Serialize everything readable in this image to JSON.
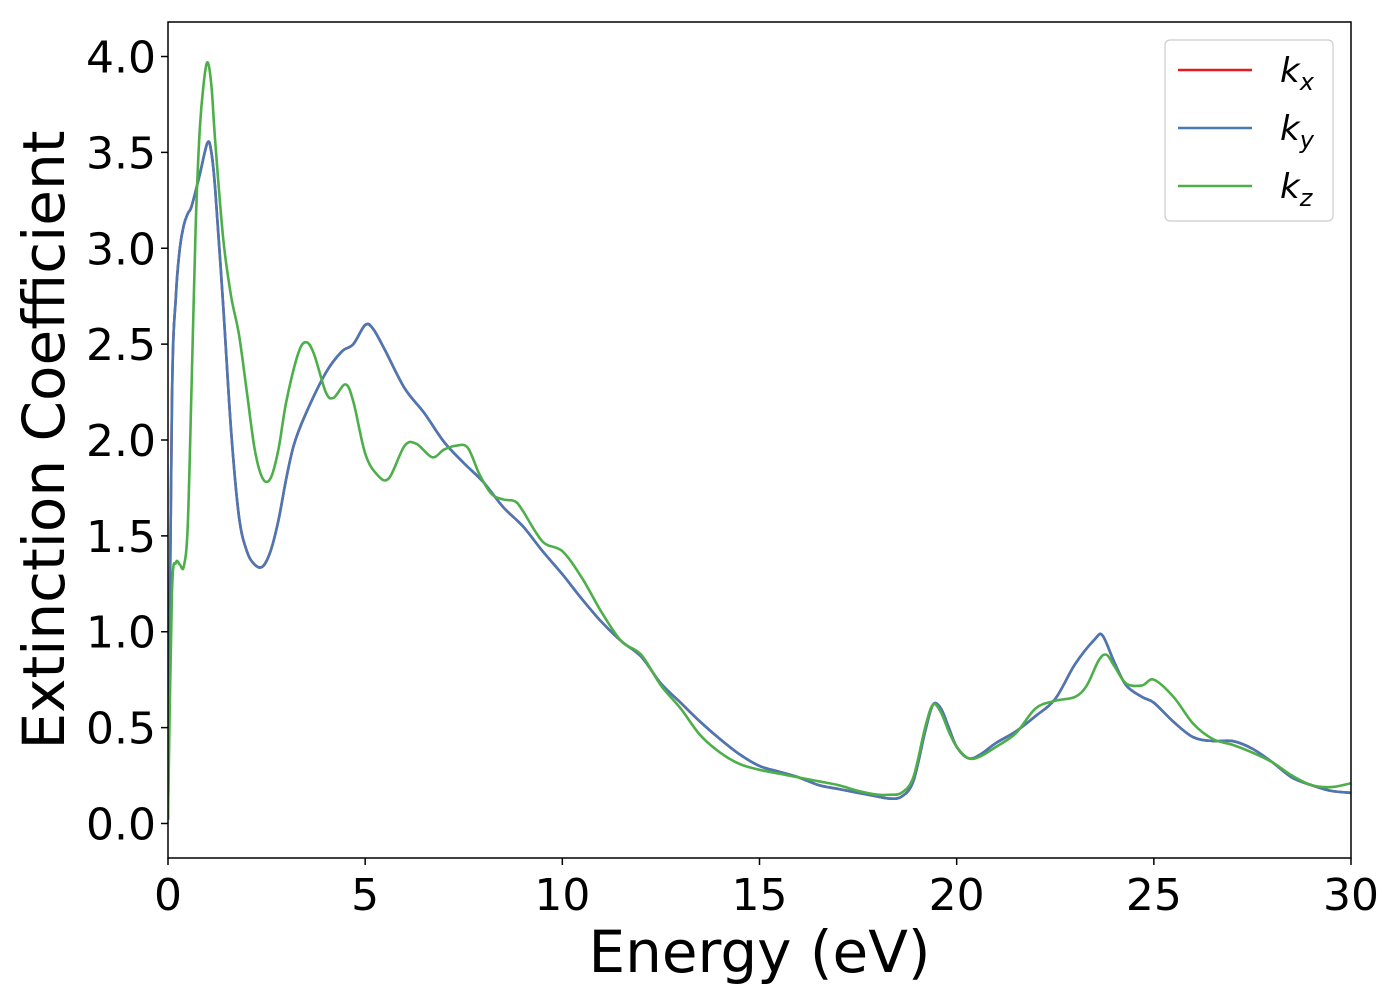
{
  "chart_data": {
    "type": "line",
    "xlabel": "Energy (eV)",
    "ylabel": "Extinction Coefficient",
    "xlim": [
      0,
      30
    ],
    "ylim": [
      -0.18,
      4.18
    ],
    "xticks": [
      "0",
      "5",
      "10",
      "15",
      "20",
      "25",
      "30"
    ],
    "yticks": [
      "0.0",
      "0.5",
      "1.0",
      "1.5",
      "2.0",
      "2.5",
      "3.0",
      "3.5",
      "4.0"
    ],
    "grid": false,
    "legend_position": "top-right",
    "series": [
      {
        "name": "k_x",
        "label_base": "k",
        "label_sub": "x",
        "color": "#e41a1c",
        "x": [
          0,
          0.1,
          0.2,
          0.3,
          0.4,
          0.5,
          0.6,
          0.8,
          1.0,
          1.1,
          1.2,
          1.4,
          1.6,
          1.8,
          2.0,
          2.2,
          2.4,
          2.6,
          2.8,
          3.0,
          3.2,
          3.5,
          4.0,
          4.4,
          4.7,
          5.0,
          5.2,
          5.5,
          6.0,
          6.5,
          7.0,
          7.5,
          8.0,
          8.5,
          9.0,
          9.5,
          10.0,
          10.5,
          11.0,
          11.5,
          12.0,
          12.5,
          13.0,
          13.5,
          14.0,
          14.5,
          15.0,
          15.5,
          16.0,
          16.5,
          17.0,
          17.5,
          18.0,
          18.3,
          18.6,
          18.9,
          19.2,
          19.4,
          19.6,
          19.8,
          20.0,
          20.3,
          20.6,
          21.0,
          21.5,
          22.0,
          22.5,
          23.0,
          23.5,
          23.7,
          24.0,
          24.3,
          24.7,
          25.0,
          25.5,
          26.0,
          26.5,
          27.0,
          27.5,
          28.0,
          28.5,
          29.0,
          29.5,
          30.0
        ],
        "y": [
          0.02,
          2.2,
          2.75,
          3.0,
          3.12,
          3.18,
          3.22,
          3.38,
          3.55,
          3.5,
          3.3,
          2.7,
          2.05,
          1.6,
          1.42,
          1.35,
          1.34,
          1.42,
          1.58,
          1.8,
          1.98,
          2.14,
          2.35,
          2.46,
          2.5,
          2.6,
          2.58,
          2.47,
          2.27,
          2.14,
          1.99,
          1.88,
          1.78,
          1.65,
          1.55,
          1.42,
          1.3,
          1.17,
          1.05,
          0.95,
          0.87,
          0.73,
          0.63,
          0.53,
          0.44,
          0.36,
          0.3,
          0.27,
          0.24,
          0.2,
          0.18,
          0.16,
          0.14,
          0.13,
          0.14,
          0.22,
          0.48,
          0.62,
          0.6,
          0.5,
          0.4,
          0.34,
          0.36,
          0.42,
          0.48,
          0.56,
          0.65,
          0.83,
          0.96,
          0.98,
          0.84,
          0.72,
          0.66,
          0.63,
          0.53,
          0.45,
          0.43,
          0.43,
          0.39,
          0.32,
          0.24,
          0.2,
          0.17,
          0.16
        ]
      },
      {
        "name": "k_y",
        "label_base": "k",
        "label_sub": "y",
        "color": "#4a78b4",
        "x": [
          0,
          0.1,
          0.2,
          0.3,
          0.4,
          0.5,
          0.6,
          0.8,
          1.0,
          1.1,
          1.2,
          1.4,
          1.6,
          1.8,
          2.0,
          2.2,
          2.4,
          2.6,
          2.8,
          3.0,
          3.2,
          3.5,
          4.0,
          4.4,
          4.7,
          5.0,
          5.2,
          5.5,
          6.0,
          6.5,
          7.0,
          7.5,
          8.0,
          8.5,
          9.0,
          9.5,
          10.0,
          10.5,
          11.0,
          11.5,
          12.0,
          12.5,
          13.0,
          13.5,
          14.0,
          14.5,
          15.0,
          15.5,
          16.0,
          16.5,
          17.0,
          17.5,
          18.0,
          18.3,
          18.6,
          18.9,
          19.2,
          19.4,
          19.6,
          19.8,
          20.0,
          20.3,
          20.6,
          21.0,
          21.5,
          22.0,
          22.5,
          23.0,
          23.5,
          23.7,
          24.0,
          24.3,
          24.7,
          25.0,
          25.5,
          26.0,
          26.5,
          27.0,
          27.5,
          28.0,
          28.5,
          29.0,
          29.5,
          30.0
        ],
        "y": [
          0.02,
          2.2,
          2.75,
          3.0,
          3.12,
          3.18,
          3.22,
          3.38,
          3.55,
          3.5,
          3.3,
          2.7,
          2.05,
          1.6,
          1.42,
          1.35,
          1.34,
          1.42,
          1.58,
          1.8,
          1.98,
          2.14,
          2.35,
          2.46,
          2.5,
          2.6,
          2.58,
          2.47,
          2.27,
          2.14,
          1.99,
          1.88,
          1.78,
          1.65,
          1.55,
          1.42,
          1.3,
          1.17,
          1.05,
          0.95,
          0.87,
          0.73,
          0.63,
          0.53,
          0.44,
          0.36,
          0.3,
          0.27,
          0.24,
          0.2,
          0.18,
          0.16,
          0.14,
          0.13,
          0.14,
          0.22,
          0.48,
          0.62,
          0.6,
          0.5,
          0.4,
          0.34,
          0.36,
          0.42,
          0.48,
          0.56,
          0.65,
          0.83,
          0.96,
          0.98,
          0.84,
          0.72,
          0.66,
          0.63,
          0.53,
          0.45,
          0.43,
          0.43,
          0.39,
          0.32,
          0.24,
          0.2,
          0.17,
          0.16
        ]
      },
      {
        "name": "k_z",
        "label_base": "k",
        "label_sub": "z",
        "color": "#4daf4a",
        "x": [
          0,
          0.1,
          0.2,
          0.3,
          0.4,
          0.5,
          0.6,
          0.7,
          0.8,
          0.9,
          1.0,
          1.1,
          1.2,
          1.4,
          1.6,
          1.8,
          2.0,
          2.2,
          2.4,
          2.6,
          2.8,
          3.0,
          3.3,
          3.5,
          3.7,
          4.0,
          4.2,
          4.5,
          4.7,
          5.0,
          5.3,
          5.6,
          6.0,
          6.3,
          6.7,
          7.0,
          7.3,
          7.6,
          7.9,
          8.2,
          8.5,
          8.8,
          9.0,
          9.5,
          10.0,
          10.5,
          11.0,
          11.5,
          12.0,
          12.5,
          13.0,
          13.5,
          14.0,
          14.5,
          15.0,
          15.5,
          16.0,
          16.5,
          17.0,
          17.5,
          18.0,
          18.3,
          18.6,
          18.9,
          19.2,
          19.4,
          19.6,
          19.8,
          20.0,
          20.3,
          20.6,
          21.0,
          21.5,
          22.0,
          22.5,
          23.0,
          23.3,
          23.6,
          23.8,
          24.0,
          24.3,
          24.7,
          25.0,
          25.5,
          26.0,
          26.5,
          27.0,
          27.5,
          28.0,
          28.5,
          29.0,
          29.5,
          30.0
        ],
        "y": [
          0.02,
          1.2,
          1.36,
          1.35,
          1.34,
          1.55,
          2.3,
          3.1,
          3.6,
          3.85,
          3.97,
          3.85,
          3.55,
          3.05,
          2.75,
          2.55,
          2.25,
          1.95,
          1.8,
          1.8,
          1.95,
          2.2,
          2.45,
          2.51,
          2.45,
          2.25,
          2.22,
          2.29,
          2.2,
          1.93,
          1.82,
          1.8,
          1.97,
          1.98,
          1.91,
          1.95,
          1.97,
          1.96,
          1.82,
          1.72,
          1.69,
          1.68,
          1.63,
          1.47,
          1.42,
          1.28,
          1.1,
          0.95,
          0.88,
          0.72,
          0.6,
          0.46,
          0.37,
          0.31,
          0.28,
          0.26,
          0.24,
          0.22,
          0.2,
          0.17,
          0.15,
          0.15,
          0.16,
          0.24,
          0.5,
          0.62,
          0.58,
          0.48,
          0.4,
          0.34,
          0.35,
          0.4,
          0.47,
          0.6,
          0.64,
          0.66,
          0.72,
          0.85,
          0.88,
          0.82,
          0.73,
          0.72,
          0.75,
          0.66,
          0.52,
          0.44,
          0.41,
          0.37,
          0.32,
          0.25,
          0.2,
          0.19,
          0.21
        ]
      }
    ]
  }
}
